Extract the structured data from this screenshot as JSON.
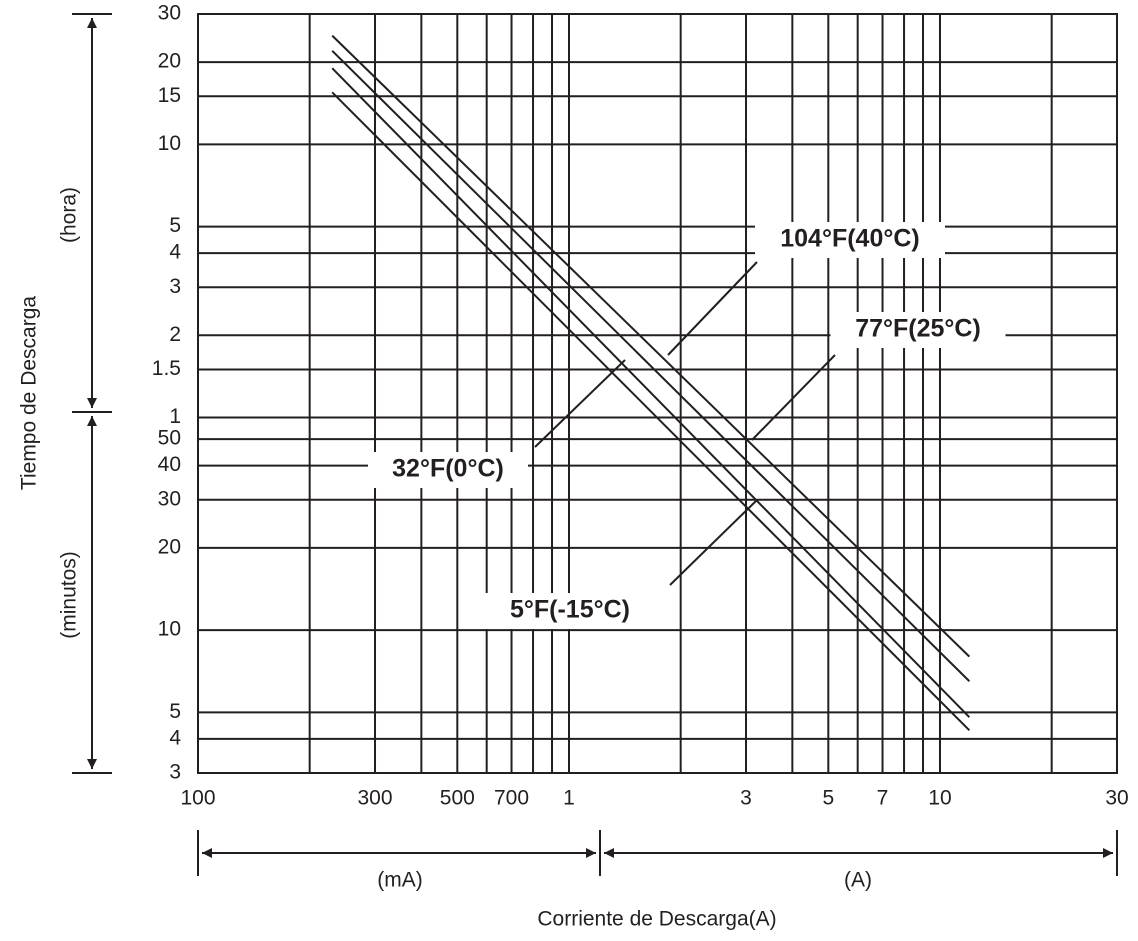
{
  "chart_data": {
    "type": "line",
    "x_axis_label": "Corriente de Descarga(A)",
    "y_axis_label": "Tiempo de Descarga",
    "y_annotations": [
      "(hora)",
      "(minutos)"
    ],
    "x_annotations": [
      "(mA)",
      "(A)"
    ],
    "log_x": true,
    "log_y": true,
    "grid": true,
    "xlim": [
      0.1,
      30
    ],
    "ylim": [
      3,
      1800
    ],
    "xticks": [
      {
        "value": 0.1,
        "label": "100"
      },
      {
        "value": 0.3,
        "label": "300"
      },
      {
        "value": 0.5,
        "label": "500"
      },
      {
        "value": 0.7,
        "label": "700"
      },
      1,
      3,
      5,
      7,
      10,
      30
    ],
    "xminor": [
      0.2,
      0.4,
      0.6,
      0.8,
      0.9,
      2,
      4,
      6,
      8,
      9,
      20
    ],
    "yticks": [
      {
        "value": 1800,
        "label": "30"
      },
      {
        "value": 1200,
        "label": "20"
      },
      {
        "value": 900,
        "label": "15"
      },
      {
        "value": 600,
        "label": "10"
      },
      {
        "value": 300,
        "label": "5"
      },
      {
        "value": 240,
        "label": "4"
      },
      {
        "value": 180,
        "label": "3"
      },
      {
        "value": 120,
        "label": "2"
      },
      {
        "value": 90,
        "label": "1.5"
      },
      {
        "value": 60,
        "label": "1"
      },
      50,
      40,
      30,
      20,
      10,
      5,
      4,
      3
    ],
    "x": [
      0.23,
      12
    ],
    "series": [
      {
        "name": "104°F(40°C)",
        "color": "#231f20",
        "values": [
          1500,
          8
        ]
      },
      {
        "name": "77°F(25°C)",
        "color": "#231f20",
        "values": [
          1320,
          6.5
        ]
      },
      {
        "name": "32°F(0°C)",
        "color": "#231f20",
        "values": [
          1140,
          4.8
        ]
      },
      {
        "name": "5°F(-15°C)",
        "color": "#231f20",
        "values": [
          930,
          4.3
        ]
      }
    ]
  }
}
